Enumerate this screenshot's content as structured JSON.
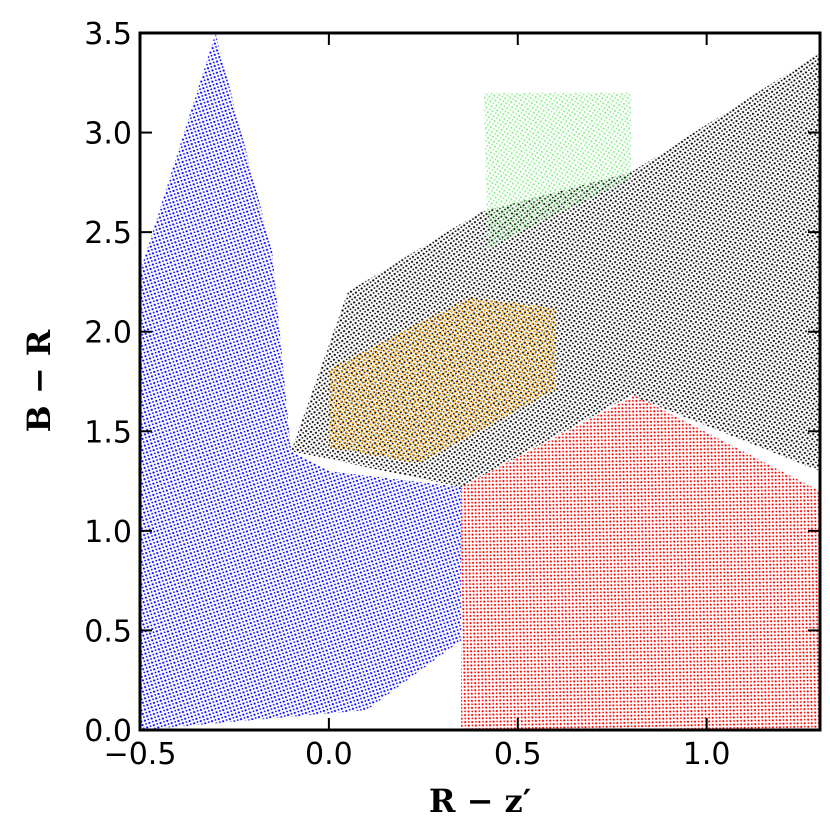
{
  "chart_data": {
    "type": "region",
    "xlabel": "R − z′",
    "ylabel": "B − R",
    "xlim": [
      -0.5,
      1.3
    ],
    "ylim": [
      0,
      3.5
    ],
    "xticks": [
      {
        "value": -0.5,
        "label": "−0.5"
      },
      {
        "value": 0.0,
        "label": "0.0"
      },
      {
        "value": 0.5,
        "label": "0.5"
      },
      {
        "value": 1.0,
        "label": "1.0"
      }
    ],
    "yticks": [
      {
        "value": 0.0,
        "label": "0.0"
      },
      {
        "value": 0.5,
        "label": "0.5"
      },
      {
        "value": 1.0,
        "label": "1.0"
      },
      {
        "value": 1.5,
        "label": "1.5"
      },
      {
        "value": 2.0,
        "label": "2.0"
      },
      {
        "value": 2.5,
        "label": "2.5"
      },
      {
        "value": 3.0,
        "label": "3.0"
      },
      {
        "value": 3.5,
        "label": "3.5"
      }
    ],
    "series": [
      {
        "color": "#000000",
        "x": [
          -0.1,
          0.05,
          0.4,
          0.8,
          1.3,
          1.3,
          0.8,
          0.35
        ],
        "y": [
          1.4,
          2.2,
          2.6,
          2.8,
          3.4,
          1.3,
          1.68,
          1.22
        ]
      },
      {
        "color": "#0000ff",
        "x": [
          0.35,
          0.35,
          0.1,
          -0.5,
          -0.5,
          -0.3,
          -0.15,
          -0.1,
          0.0
        ],
        "y": [
          1.22,
          0.45,
          0.1,
          0.0,
          2.3,
          3.5,
          2.4,
          1.4,
          1.3
        ]
      },
      {
        "color": "#ff0000",
        "x": [
          0.35,
          0.81,
          1.3,
          1.3,
          0.35
        ],
        "y": [
          1.22,
          1.68,
          1.2,
          0.0,
          0.0
        ]
      },
      {
        "color": "#ffa500",
        "x": [
          0.0,
          0.37,
          0.6,
          0.6,
          0.24,
          0.0
        ],
        "y": [
          1.81,
          2.17,
          2.12,
          1.71,
          1.34,
          1.42
        ]
      },
      {
        "color": "#90ee90",
        "x": [
          0.41,
          0.8,
          0.8,
          0.42
        ],
        "y": [
          3.2,
          3.2,
          2.77,
          2.42
        ]
      }
    ]
  }
}
